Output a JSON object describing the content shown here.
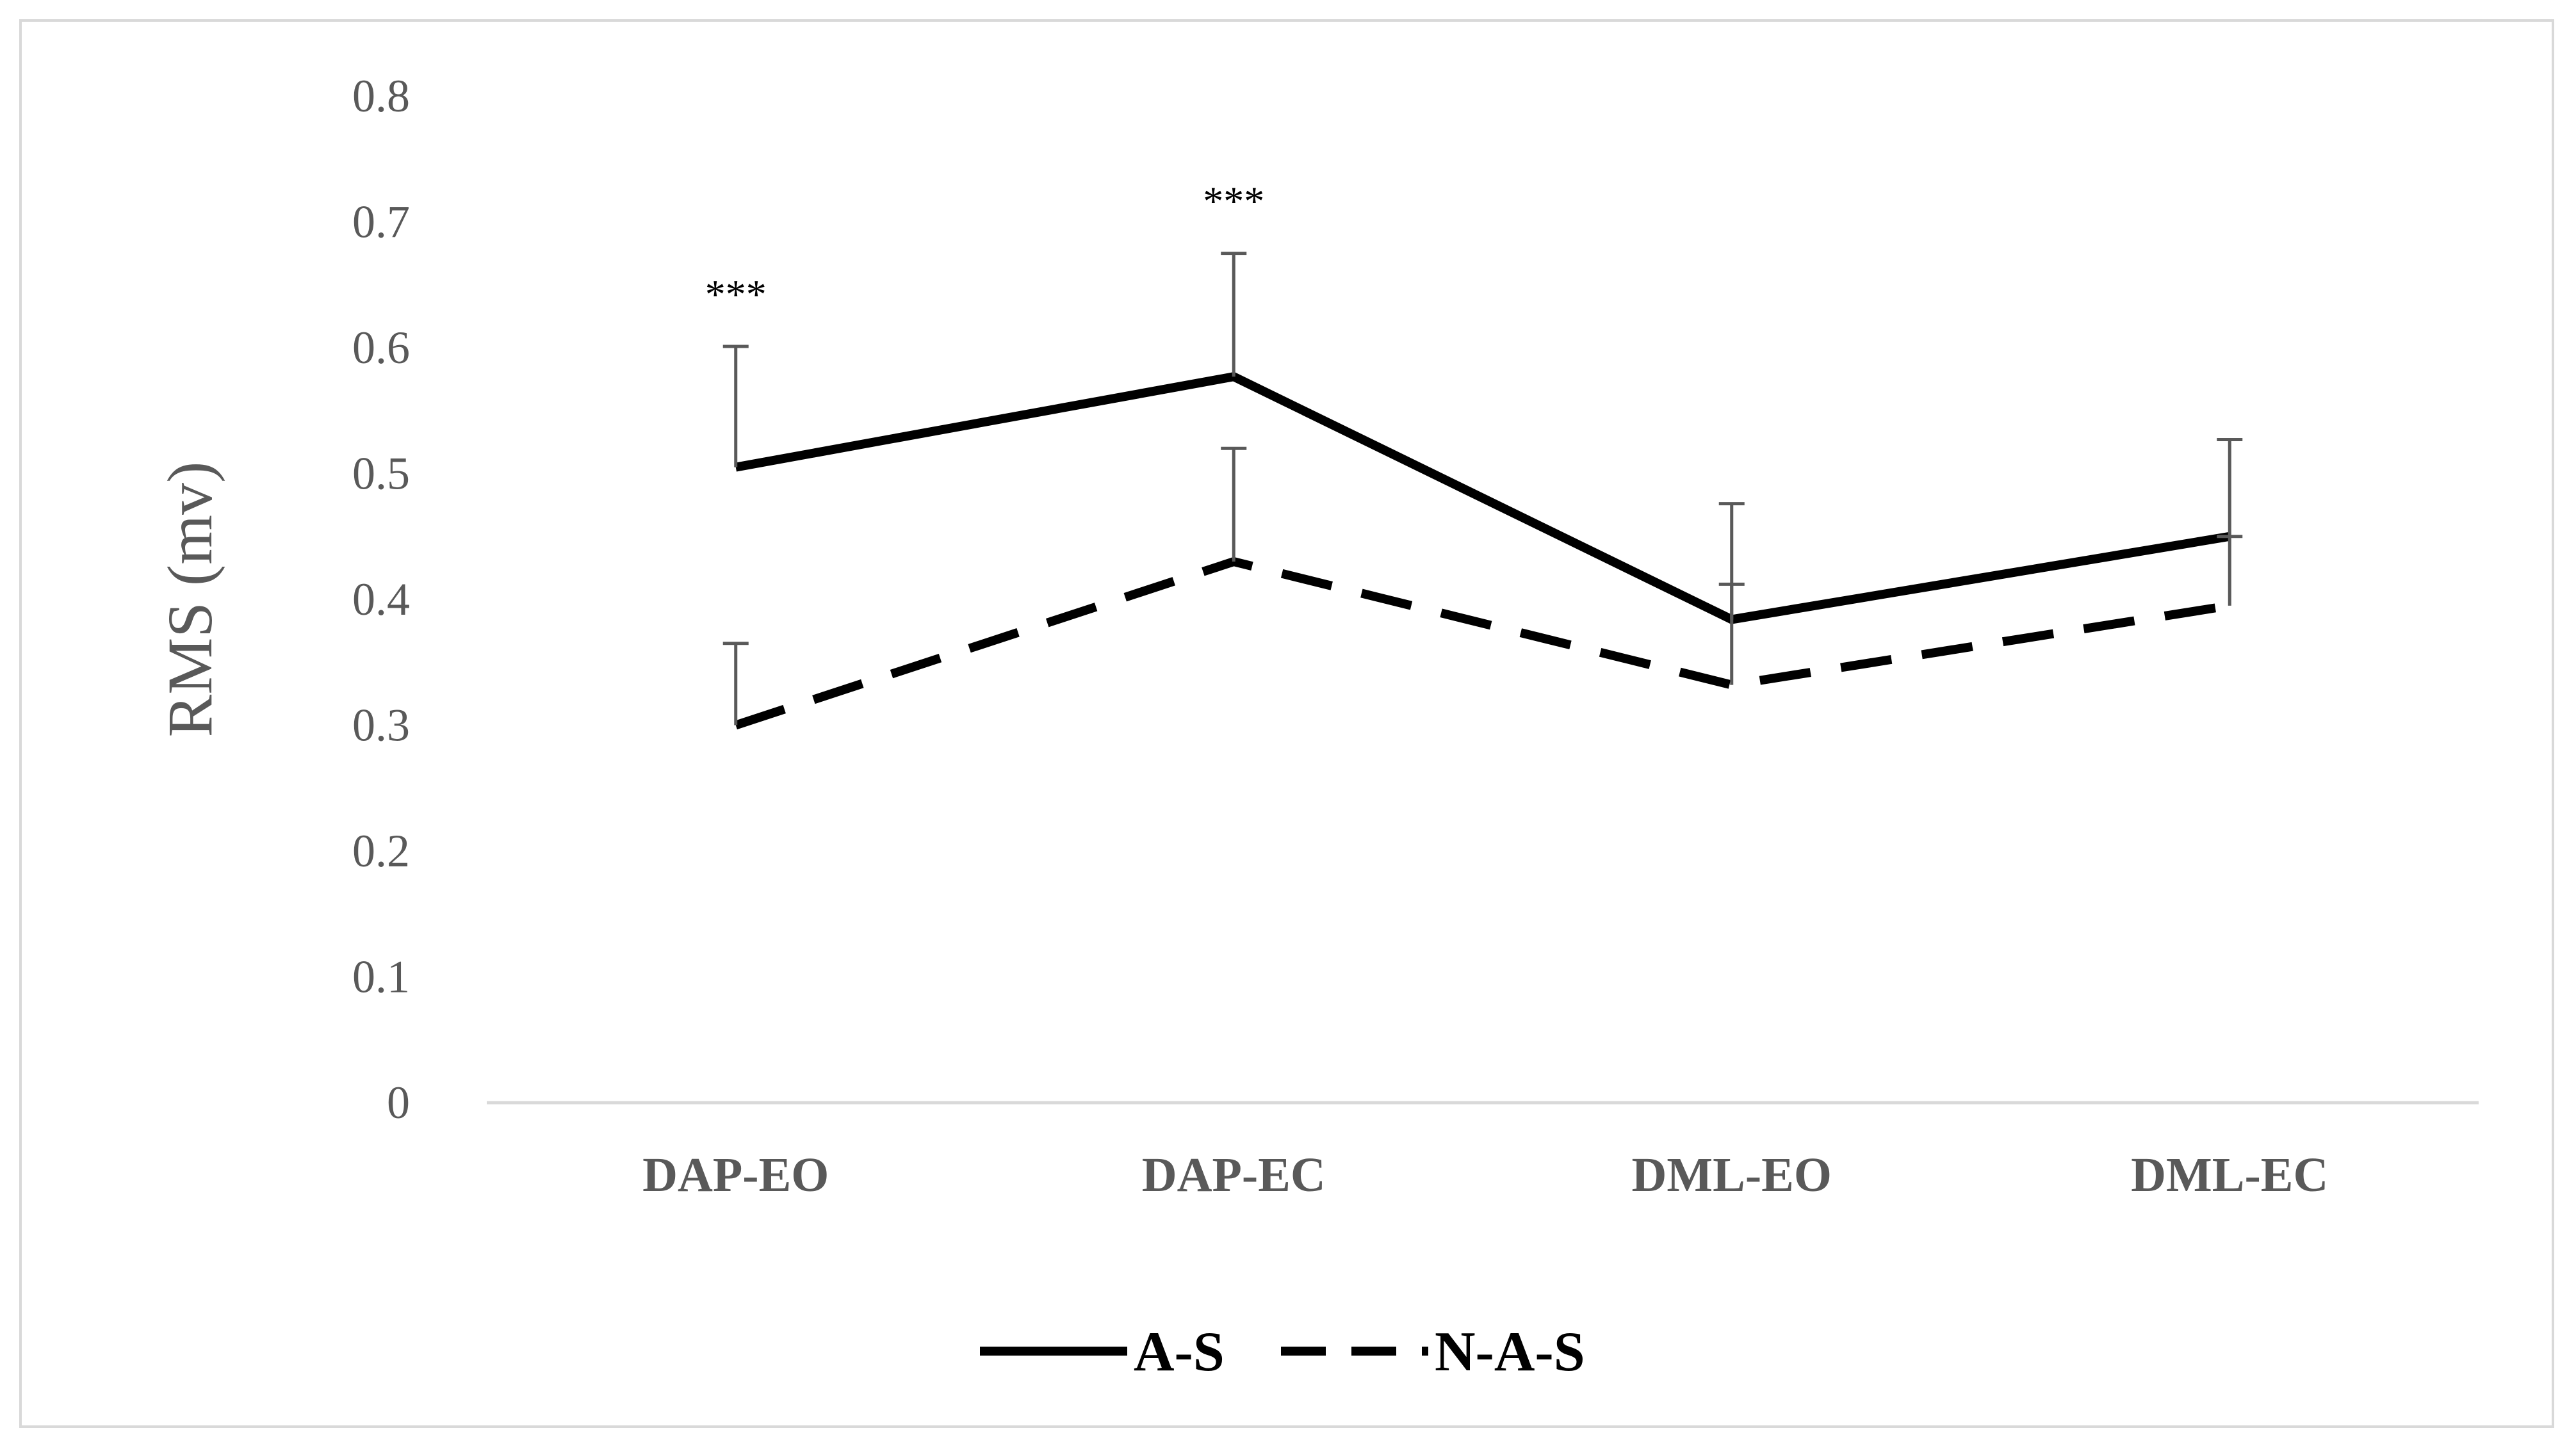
{
  "chart_data": {
    "type": "line",
    "title": "",
    "xlabel": "",
    "ylabel": "RMS (mv)",
    "ylim": [
      0,
      0.8
    ],
    "yticks": [
      "0",
      "0.1",
      "0.2",
      "0.3",
      "0.4",
      "0.5",
      "0.6",
      "0.7",
      "0.8"
    ],
    "grid": false,
    "categories": [
      "DAP-EO",
      "DAP-EC",
      "DML-EO",
      "DML-EC"
    ],
    "series": [
      {
        "name": "A-S",
        "style": "solid",
        "values": [
          0.505,
          0.577,
          0.384,
          0.45
        ],
        "error_plus": [
          0.096,
          0.098,
          0.092,
          0.077
        ]
      },
      {
        "name": "N-A-S",
        "style": "dashed",
        "values": [
          0.3,
          0.43,
          0.332,
          0.395
        ],
        "error_plus": [
          0.065,
          0.09,
          0.08,
          0.055
        ]
      }
    ],
    "annotations": [
      {
        "category": "DAP-EO",
        "text": "***"
      },
      {
        "category": "DAP-EC",
        "text": "***"
      }
    ],
    "legend_position": "bottom-center",
    "colors": {
      "series": "#000000",
      "axis": "#d9d9d9",
      "text": "#595959",
      "error_bar": "#595959"
    }
  }
}
